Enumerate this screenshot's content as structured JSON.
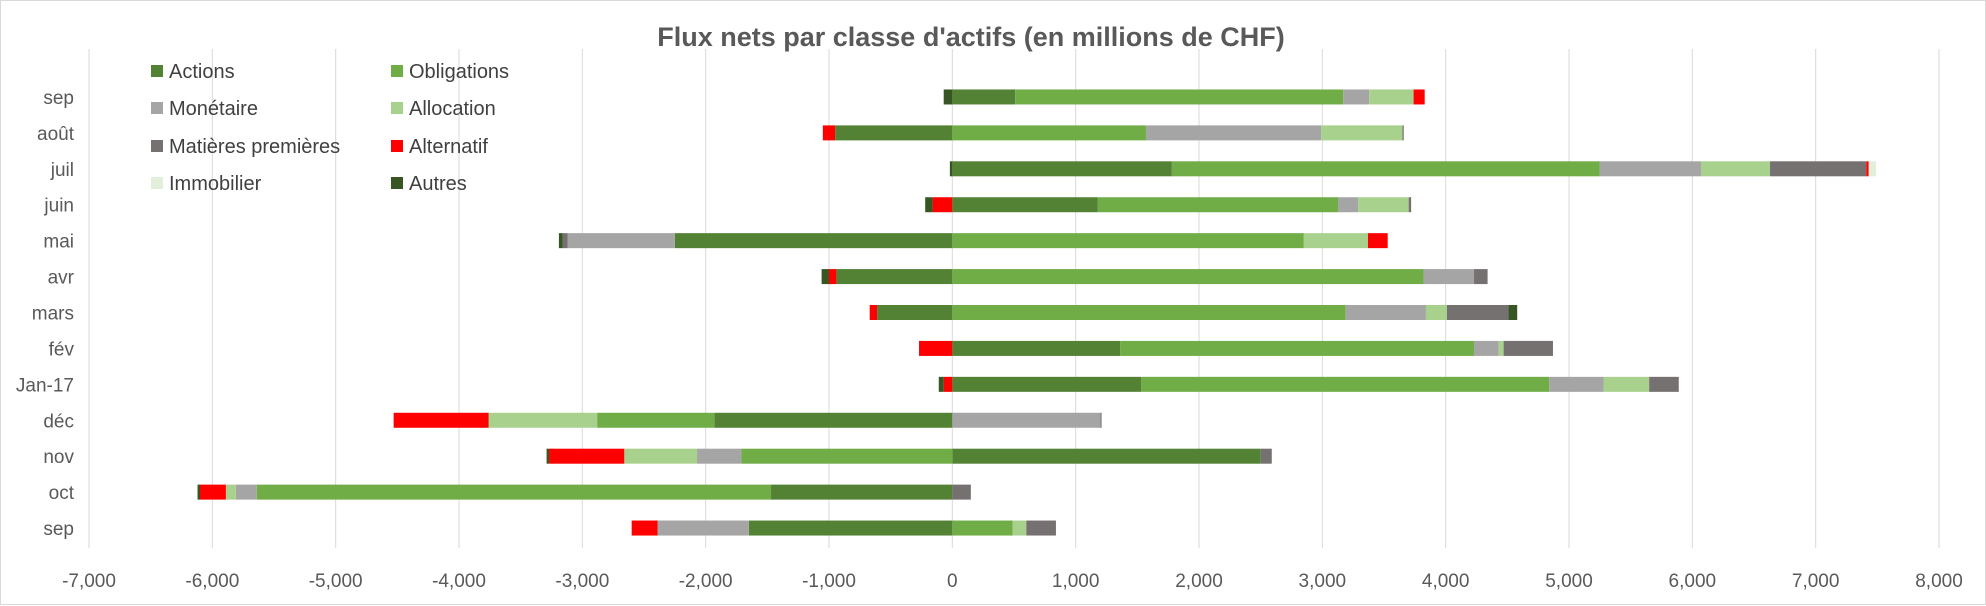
{
  "chart_data": {
    "type": "bar",
    "orientation": "horizontal",
    "stacked": true,
    "title": "Flux nets par classe d'actifs (en millions de CHF)",
    "xlabel": "",
    "ylabel": "",
    "xlim": [
      -7000,
      8000
    ],
    "x_ticks": [
      -7000,
      -6000,
      -5000,
      -4000,
      -3000,
      -2000,
      -1000,
      0,
      1000,
      2000,
      3000,
      4000,
      5000,
      6000,
      7000,
      8000
    ],
    "x_tick_labels": [
      "-7,000",
      "-6,000",
      "-5,000",
      "-4,000",
      "-3,000",
      "-2,000",
      "-1,000",
      "0",
      "1,000",
      "2,000",
      "3,000",
      "4,000",
      "5,000",
      "6,000",
      "7,000",
      "8,000"
    ],
    "grid": "vertical",
    "legend_position": "top-left",
    "categories": [
      "sep",
      "oct",
      "nov",
      "déc",
      "Jan-17",
      "fév",
      "mars",
      "avr",
      "mai",
      "juin",
      "juil",
      "août",
      "sep"
    ],
    "series": [
      {
        "name": "Actions",
        "color": "#548235",
        "values": [
          -1650,
          -1470,
          2500,
          -1930,
          1530,
          1360,
          -610,
          -940,
          -2250,
          1180,
          1780,
          -950,
          510
        ]
      },
      {
        "name": "Obligations",
        "color": "#70ad47",
        "values": [
          490,
          -4170,
          -1710,
          -950,
          3310,
          2870,
          3190,
          3820,
          2850,
          1950,
          3470,
          1570,
          2660
        ]
      },
      {
        "name": "Monétaire",
        "color": "#a5a5a5",
        "values": [
          -740,
          -170,
          -360,
          1200,
          440,
          200,
          650,
          410,
          -870,
          160,
          820,
          1420,
          210
        ]
      },
      {
        "name": "Allocation",
        "color": "#a9d18e",
        "values": [
          110,
          -80,
          -590,
          -880,
          370,
          40,
          170,
          0,
          520,
          410,
          560,
          660,
          360
        ]
      },
      {
        "name": "Matières premières",
        "color": "#767171",
        "values": [
          240,
          150,
          90,
          10,
          240,
          400,
          500,
          110,
          -40,
          20,
          780,
          10,
          0
        ]
      },
      {
        "name": "Alternatif",
        "color": "#ff0000",
        "values": [
          -210,
          -210,
          -610,
          -770,
          -70,
          -270,
          -60,
          -60,
          160,
          -160,
          20,
          -100,
          90
        ]
      },
      {
        "name": "Immobilier",
        "color": "#e2f0d9",
        "values": [
          0,
          0,
          0,
          0,
          0,
          0,
          0,
          0,
          0,
          0,
          60,
          0,
          0
        ]
      },
      {
        "name": "Autres",
        "color": "#375623",
        "values": [
          0,
          -20,
          -20,
          0,
          -40,
          0,
          70,
          -60,
          -30,
          -60,
          -20,
          0,
          -70
        ]
      }
    ]
  }
}
